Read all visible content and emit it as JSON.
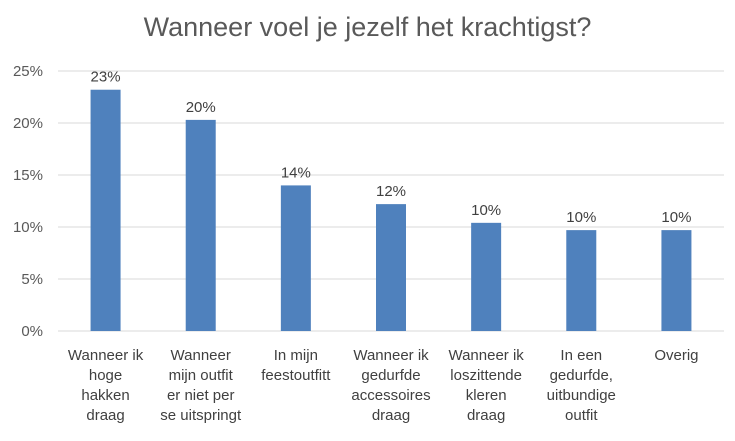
{
  "chart_data": {
    "type": "bar",
    "title": "Wanneer voel je jezelf het krachtigst?",
    "categories": [
      [
        "Wanneer ik",
        "hoge",
        "hakken",
        "draag"
      ],
      [
        "Wanneer",
        "mijn outfit",
        "er niet per",
        "se uitspringt"
      ],
      [
        "In mijn",
        "feestoutfitt"
      ],
      [
        "Wanneer ik",
        "gedurfde",
        "accessoires",
        "draag"
      ],
      [
        "Wanneer ik",
        "loszittende",
        "kleren",
        "draag"
      ],
      [
        "In een",
        "gedurfde,",
        "uitbundige",
        "outfit"
      ],
      [
        "Overig"
      ]
    ],
    "values": [
      23.2,
      20.3,
      14.0,
      12.2,
      10.4,
      9.7,
      9.7
    ],
    "data_labels": [
      "23%",
      "20%",
      "14%",
      "12%",
      "10%",
      "10%",
      "10%"
    ],
    "ylim": [
      0,
      25
    ],
    "yticks": [
      0,
      5,
      10,
      15,
      20,
      25
    ],
    "ytick_labels": [
      "0%",
      "5%",
      "10%",
      "15%",
      "20%",
      "25%"
    ],
    "xlabel": "",
    "ylabel": "",
    "grid": true,
    "legend": "none",
    "bar_color": "#4f81bd",
    "grid_color": "#d9d9d9"
  }
}
